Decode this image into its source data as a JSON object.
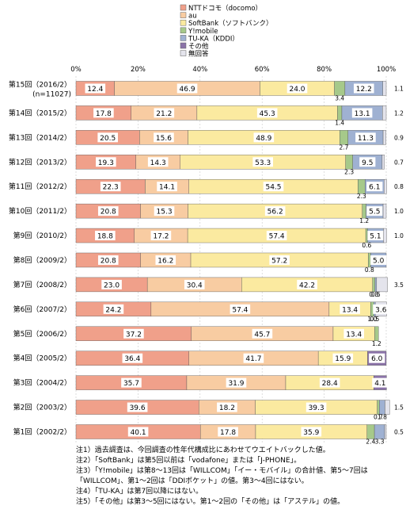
{
  "chart_data": {
    "type": "bar",
    "orientation": "horizontal",
    "stacked": true,
    "percent_stacked": true,
    "xlim": [
      0,
      100
    ],
    "x_ticks": [
      "0%",
      "20%",
      "40%",
      "60%",
      "80%",
      "100%"
    ],
    "legend_position": "top-right",
    "categories": [
      "第15回（2016/2）",
      "第14回（2015/2）",
      "第13回（2014/2）",
      "第12回（2013/2）",
      "第11回（2012/2）",
      "第10回（2011/2）",
      "第9回（2010/2）",
      "第8回（2009/2）",
      "第7回（2008/2）",
      "第6回（2007/2）",
      "第5回（2006/2）",
      "第4回（2005/2）",
      "第3回（2004/2）",
      "第2回（2003/2）",
      "第1回（2002/2）"
    ],
    "category_sublabels": [
      "(n=11027)",
      "",
      "",
      "",
      "",
      "",
      "",
      "",
      "",
      "",
      "",
      "",
      "",
      "",
      ""
    ],
    "series": [
      {
        "name": "NTTドコモ（docomo）",
        "color": "#f0a08a",
        "values": [
          12.4,
          17.8,
          20.5,
          19.3,
          22.3,
          20.8,
          18.8,
          20.8,
          23.0,
          24.2,
          37.2,
          36.4,
          35.7,
          39.6,
          40.1
        ],
        "labels": [
          "12.4",
          "17.8",
          "20.5",
          "19.3",
          "22.3",
          "20.8",
          "18.8",
          "20.8",
          "23.0",
          "24.2",
          "37.2",
          "36.4",
          "35.7",
          "39.6",
          "40.1"
        ]
      },
      {
        "name": "au",
        "color": "#f8cca2",
        "values": [
          46.9,
          21.2,
          15.6,
          14.3,
          14.1,
          15.3,
          17.2,
          16.2,
          30.4,
          57.4,
          45.7,
          41.7,
          31.9,
          18.2,
          17.8
        ],
        "labels": [
          "46.9",
          "21.2",
          "15.6",
          "14.3",
          "14.1",
          "15.3",
          "17.2",
          "16.2",
          "30.4",
          "57.4",
          "45.7",
          "41.7",
          "31.9",
          "18.2",
          "17.8"
        ]
      },
      {
        "name": "SoftBank（ソフトバンク）",
        "color": "#fbeaa0",
        "values": [
          24.0,
          45.3,
          48.9,
          53.3,
          54.5,
          56.2,
          57.4,
          57.2,
          42.2,
          13.4,
          13.4,
          15.9,
          28.4,
          39.3,
          35.9
        ],
        "labels": [
          "24.0",
          "45.3",
          "48.9",
          "53.3",
          "54.5",
          "56.2",
          "57.4",
          "57.2",
          "42.2",
          "13.4",
          "13.4",
          "15.9",
          "28.4",
          "39.3",
          "35.9"
        ]
      },
      {
        "name": "Y!mobile",
        "color": "#a6c98a",
        "values": [
          3.4,
          1.4,
          2.7,
          2.3,
          2.3,
          1.2,
          0.6,
          0.8,
          0.8,
          1.0,
          1.2,
          0,
          0,
          0.7,
          2.4
        ],
        "labels": [
          "3.4",
          "1.4",
          "2.7",
          "2.3",
          "2.3",
          "1.2",
          "0.6",
          "0.8",
          "0.8",
          "1.0",
          "1.2",
          "",
          "",
          "0.7",
          "2.4"
        ]
      },
      {
        "name": "TU-KA（KDDI）",
        "color": "#9fb1d2",
        "values": [
          12.2,
          13.1,
          11.3,
          9.5,
          6.1,
          5.5,
          5.1,
          5.0,
          0.5,
          0.5,
          0,
          0,
          0,
          1.8,
          3.3
        ],
        "labels": [
          "12.2",
          "13.1",
          "11.3",
          "9.5",
          "6.1",
          "5.5",
          "5.1",
          "5.0",
          "0.5",
          "0.5",
          "",
          "",
          "",
          "1.8",
          "3.3"
        ]
      },
      {
        "name": "その他",
        "color": "#8b73a8",
        "values": [
          0,
          0,
          0,
          0,
          0,
          0,
          0,
          0,
          0,
          0,
          0,
          6.0,
          4.1,
          0,
          0
        ],
        "labels": [
          "",
          "",
          "",
          "",
          "",
          "",
          "",
          "",
          "",
          "",
          "",
          "6.0",
          "4.1",
          "",
          ""
        ]
      },
      {
        "name": "無回答",
        "color": "#e4e4ec",
        "values": [
          1.1,
          1.2,
          0.9,
          0.7,
          0.8,
          1.0,
          1.0,
          0,
          3.5,
          3.6,
          0,
          0,
          0,
          1.5,
          0.5
        ],
        "labels": [
          "1.1",
          "1.2",
          "0.9",
          "0.7",
          "0.8",
          "1.0",
          "1.0",
          "",
          "3.5",
          "3.6",
          "",
          "",
          "",
          "1.5",
          "0.5"
        ]
      }
    ]
  },
  "notes": [
    "注1）過去調査は、今回調査の性年代構成比にあわせてウエイトバックした値。",
    "注2）「SoftBank」は第5回以前は「vodafone」または「J-PHONE」。",
    "注3）「Y!mobile」は第8〜13回は「WILLCOM」「イー・モバイル」の合計値、第5〜7回は",
    "「WILLCOM」、第1〜2回は「DDIポケット」の値。第3〜4回にはない。",
    "注4）「TU-KA」は第7回以降にはない。",
    "注5）「その他」は第3〜5回にはない。第1〜2回の「その他」は「アステル」の値。"
  ]
}
